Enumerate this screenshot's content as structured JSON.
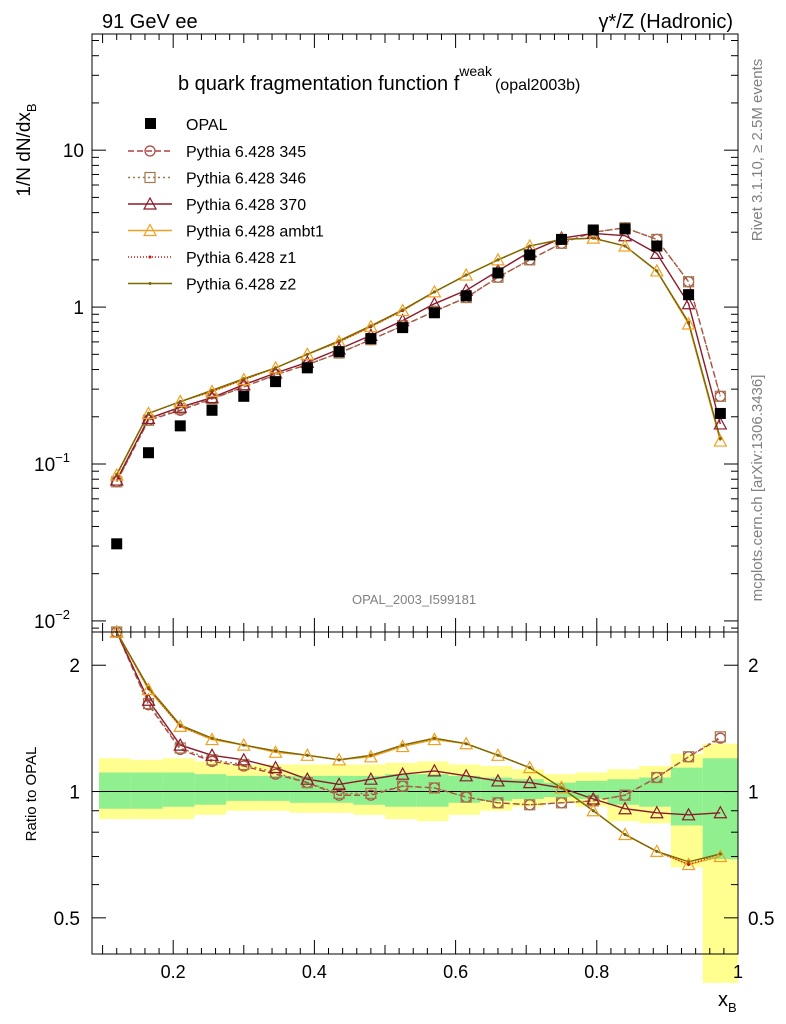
{
  "header": {
    "left": "91 GeV ee",
    "right": "γ*/Z (Hadronic)"
  },
  "side_labels": {
    "rivet": "Rivet 3.1.10, ≥ 2.5M events",
    "mcplots": "mcplots.cern.ch [arXiv:1306.3436]"
  },
  "chart_data": {
    "type": "line",
    "title_main": "b quark fragmentation function f",
    "title_sup": "weak",
    "title_sub": "(opal2003b)",
    "watermark": "OPAL_2003_I599181",
    "ylabel": "1/N dN/dx",
    "ylabel_sub": "B",
    "xlabel": "x",
    "xlabel_sub": "B",
    "ratio_ylabel": "Ratio to OPAL",
    "xlim": [
      0.085,
      1.0
    ],
    "ylim": [
      0.0085,
      55
    ],
    "yscale": "log",
    "ratio_ylim": [
      0.41,
      2.4
    ],
    "ratio_yscale": "log",
    "x_ticks": [
      "0.2",
      "0.4",
      "0.6",
      "0.8",
      "1"
    ],
    "y_ticks": [
      {
        "base": "10",
        "exp": "−2",
        "value": 0.01
      },
      {
        "base": "10",
        "exp": "−1",
        "value": 0.1
      },
      {
        "base": "1",
        "exp": "",
        "value": 1
      },
      {
        "base": "10",
        "exp": "",
        "value": 10
      }
    ],
    "ratio_ticks": [
      "0.5",
      "1",
      "2"
    ],
    "x": [
      0.12,
      0.165,
      0.21,
      0.255,
      0.3,
      0.345,
      0.39,
      0.435,
      0.48,
      0.525,
      0.57,
      0.615,
      0.66,
      0.705,
      0.75,
      0.795,
      0.84,
      0.885,
      0.93,
      0.975
    ],
    "bin_edges": [
      0.095,
      0.14,
      0.185,
      0.23,
      0.275,
      0.32,
      0.365,
      0.41,
      0.455,
      0.5,
      0.545,
      0.59,
      0.635,
      0.68,
      0.725,
      0.77,
      0.815,
      0.86,
      0.905,
      0.95,
      1.0
    ],
    "data": {
      "name": "OPAL",
      "values": [
        0.031,
        0.118,
        0.175,
        0.22,
        0.27,
        0.335,
        0.41,
        0.52,
        0.63,
        0.74,
        0.92,
        1.18,
        1.65,
        2.15,
        2.7,
        3.1,
        3.15,
        2.45,
        1.2,
        0.21
      ]
    },
    "band_inner": [
      [
        0.91,
        1.11
      ],
      [
        0.91,
        1.11
      ],
      [
        0.92,
        1.11
      ],
      [
        0.93,
        1.1
      ],
      [
        0.95,
        1.09
      ],
      [
        0.95,
        1.09
      ],
      [
        0.94,
        1.09
      ],
      [
        0.94,
        1.09
      ],
      [
        0.93,
        1.09
      ],
      [
        0.92,
        1.1
      ],
      [
        0.92,
        1.1
      ],
      [
        0.94,
        1.09
      ],
      [
        0.95,
        1.08
      ],
      [
        0.96,
        1.07
      ],
      [
        0.97,
        1.05
      ],
      [
        0.96,
        1.06
      ],
      [
        0.93,
        1.07
      ],
      [
        0.92,
        1.08
      ],
      [
        0.83,
        1.14
      ],
      [
        0.69,
        1.2
      ]
    ],
    "band_outer": [
      [
        0.86,
        1.2
      ],
      [
        0.86,
        1.19
      ],
      [
        0.86,
        1.2
      ],
      [
        0.88,
        1.18
      ],
      [
        0.9,
        1.16
      ],
      [
        0.9,
        1.16
      ],
      [
        0.89,
        1.16
      ],
      [
        0.89,
        1.16
      ],
      [
        0.88,
        1.16
      ],
      [
        0.86,
        1.17
      ],
      [
        0.85,
        1.18
      ],
      [
        0.88,
        1.16
      ],
      [
        0.9,
        1.15
      ],
      [
        0.92,
        1.13
      ],
      [
        0.94,
        1.1
      ],
      [
        0.92,
        1.11
      ],
      [
        0.85,
        1.13
      ],
      [
        0.84,
        1.15
      ],
      [
        0.66,
        1.23
      ],
      [
        0.35,
        1.3
      ]
    ],
    "series": [
      {
        "name": "Pythia 6.428 345",
        "color": "#b04040",
        "dash": "6,3",
        "marker": "circle",
        "values": [
          0.077,
          0.19,
          0.22,
          0.26,
          0.31,
          0.37,
          0.43,
          0.51,
          0.62,
          0.76,
          0.94,
          1.15,
          1.55,
          2.0,
          2.55,
          3.0,
          3.2,
          2.7,
          1.45,
          0.27
        ],
        "ratio": [
          2.48,
          1.61,
          1.26,
          1.18,
          1.15,
          1.1,
          1.05,
          0.98,
          0.98,
          1.03,
          1.02,
          0.97,
          0.94,
          0.93,
          0.94,
          0.95,
          0.98,
          1.08,
          1.21,
          1.34
        ]
      },
      {
        "name": "Pythia 6.428 346",
        "color": "#a0784a",
        "dash": "2,3",
        "marker": "square",
        "values": [
          0.077,
          0.19,
          0.225,
          0.26,
          0.31,
          0.37,
          0.43,
          0.51,
          0.62,
          0.76,
          0.94,
          1.15,
          1.55,
          2.0,
          2.55,
          3.0,
          3.2,
          2.7,
          1.45,
          0.27
        ],
        "ratio": [
          2.46,
          1.62,
          1.27,
          1.19,
          1.16,
          1.11,
          1.05,
          0.99,
          0.99,
          1.03,
          1.02,
          0.97,
          0.94,
          0.93,
          0.94,
          0.95,
          0.98,
          1.08,
          1.21,
          1.35
        ]
      },
      {
        "name": "Pythia 6.428 370",
        "color": "#8b1a2a",
        "dash": "",
        "marker": "triangle",
        "values": [
          0.079,
          0.195,
          0.23,
          0.265,
          0.32,
          0.38,
          0.445,
          0.54,
          0.66,
          0.82,
          1.05,
          1.28,
          1.7,
          2.25,
          2.75,
          2.95,
          2.85,
          2.2,
          1.05,
          0.18
        ],
        "ratio": [
          2.5,
          1.65,
          1.29,
          1.22,
          1.19,
          1.14,
          1.07,
          1.04,
          1.07,
          1.1,
          1.12,
          1.09,
          1.06,
          1.05,
          1.02,
          0.96,
          0.91,
          0.89,
          0.88,
          0.89
        ]
      },
      {
        "name": "Pythia 6.428 ambt1",
        "color": "#f0a020",
        "dash": "",
        "marker": "triangle",
        "values": [
          0.085,
          0.21,
          0.25,
          0.29,
          0.345,
          0.41,
          0.5,
          0.6,
          0.75,
          0.95,
          1.25,
          1.6,
          2.0,
          2.45,
          2.7,
          2.75,
          2.45,
          1.7,
          0.78,
          0.14
        ],
        "ratio": [
          2.6,
          1.75,
          1.43,
          1.33,
          1.29,
          1.24,
          1.22,
          1.19,
          1.21,
          1.28,
          1.33,
          1.3,
          1.22,
          1.14,
          1.02,
          0.9,
          0.79,
          0.72,
          0.67,
          0.7
        ]
      },
      {
        "name": "Pythia 6.428 z1",
        "color": "#cc1010",
        "dash": "1,2",
        "marker": "dot",
        "values": [
          0.085,
          0.21,
          0.25,
          0.29,
          0.345,
          0.41,
          0.5,
          0.6,
          0.75,
          0.95,
          1.25,
          1.6,
          2.0,
          2.45,
          2.7,
          2.75,
          2.45,
          1.7,
          0.79,
          0.145
        ],
        "ratio": [
          2.6,
          1.76,
          1.43,
          1.34,
          1.29,
          1.25,
          1.22,
          1.19,
          1.22,
          1.29,
          1.34,
          1.3,
          1.22,
          1.14,
          1.02,
          0.9,
          0.79,
          0.72,
          0.67,
          0.71
        ]
      },
      {
        "name": "Pythia 6.428 z2",
        "color": "#7a6a00",
        "dash": "",
        "marker": "dot",
        "values": [
          0.086,
          0.21,
          0.25,
          0.295,
          0.35,
          0.41,
          0.5,
          0.61,
          0.76,
          0.96,
          1.25,
          1.6,
          2.0,
          2.45,
          2.7,
          2.75,
          2.45,
          1.7,
          0.8,
          0.145
        ],
        "ratio": [
          2.61,
          1.77,
          1.44,
          1.34,
          1.29,
          1.25,
          1.22,
          1.19,
          1.22,
          1.29,
          1.34,
          1.3,
          1.22,
          1.14,
          1.02,
          0.9,
          0.79,
          0.72,
          0.68,
          0.71
        ]
      }
    ]
  }
}
